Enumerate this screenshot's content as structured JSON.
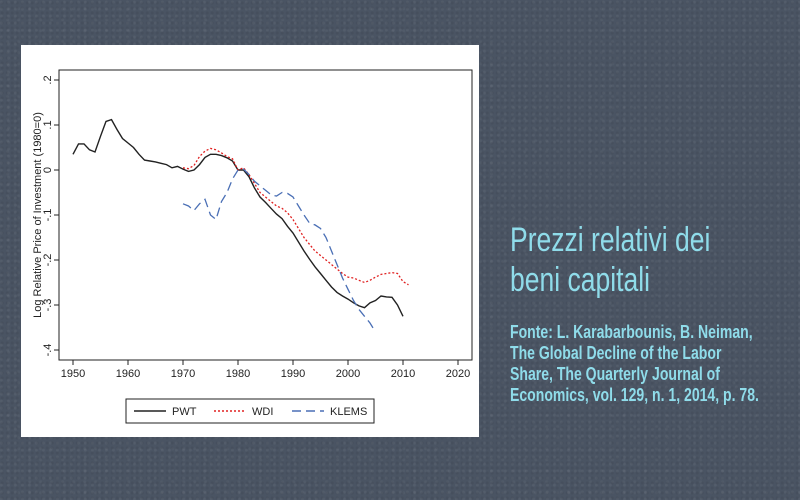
{
  "chart_data": {
    "type": "line",
    "ylabel": "Log Relative Price of Investment (1980=0)",
    "xlabel": "",
    "xlim": [
      1950,
      2020
    ],
    "ylim": [
      -0.4,
      0.2
    ],
    "x_ticks": [
      1950,
      1960,
      1970,
      1980,
      1990,
      2000,
      2010,
      2020
    ],
    "y_ticks": [
      -0.4,
      -0.3,
      -0.2,
      -0.1,
      0,
      0.1,
      0.2
    ],
    "y_tick_labels": [
      "-.4",
      "-.3",
      "-.2",
      "-.1",
      "0",
      ".1",
      ".2"
    ],
    "grid": false,
    "legend_position": "bottom",
    "series": [
      {
        "name": "PWT",
        "color": "#222222",
        "dash": "solid",
        "points": [
          [
            1950,
            0.035
          ],
          [
            1951,
            0.058
          ],
          [
            1952,
            0.058
          ],
          [
            1953,
            0.045
          ],
          [
            1954,
            0.04
          ],
          [
            1955,
            0.075
          ],
          [
            1956,
            0.108
          ],
          [
            1957,
            0.112
          ],
          [
            1958,
            0.09
          ],
          [
            1959,
            0.07
          ],
          [
            1960,
            0.06
          ],
          [
            1961,
            0.05
          ],
          [
            1962,
            0.035
          ],
          [
            1963,
            0.022
          ],
          [
            1964,
            0.02
          ],
          [
            1965,
            0.018
          ],
          [
            1966,
            0.015
          ],
          [
            1967,
            0.012
          ],
          [
            1968,
            0.005
          ],
          [
            1969,
            0.008
          ],
          [
            1970,
            0.002
          ],
          [
            1971,
            -0.003
          ],
          [
            1972,
            0.0
          ],
          [
            1973,
            0.012
          ],
          [
            1974,
            0.028
          ],
          [
            1975,
            0.035
          ],
          [
            1976,
            0.035
          ],
          [
            1977,
            0.032
          ],
          [
            1978,
            0.027
          ],
          [
            1979,
            0.02
          ],
          [
            1980,
            0.0
          ],
          [
            1981,
            0.0
          ],
          [
            1982,
            -0.015
          ],
          [
            1983,
            -0.04
          ],
          [
            1984,
            -0.06
          ],
          [
            1985,
            -0.072
          ],
          [
            1986,
            -0.085
          ],
          [
            1987,
            -0.098
          ],
          [
            1988,
            -0.108
          ],
          [
            1989,
            -0.125
          ],
          [
            1990,
            -0.14
          ],
          [
            1991,
            -0.16
          ],
          [
            1992,
            -0.18
          ],
          [
            1993,
            -0.198
          ],
          [
            1994,
            -0.215
          ],
          [
            1995,
            -0.23
          ],
          [
            1996,
            -0.245
          ],
          [
            1997,
            -0.26
          ],
          [
            1998,
            -0.272
          ],
          [
            1999,
            -0.28
          ],
          [
            2000,
            -0.287
          ],
          [
            2001,
            -0.295
          ],
          [
            2002,
            -0.302
          ],
          [
            2003,
            -0.306
          ],
          [
            2004,
            -0.295
          ],
          [
            2005,
            -0.29
          ],
          [
            2006,
            -0.28
          ],
          [
            2007,
            -0.282
          ],
          [
            2008,
            -0.283
          ],
          [
            2009,
            -0.3
          ],
          [
            2010,
            -0.325
          ]
        ]
      },
      {
        "name": "WDI",
        "color": "#e02020",
        "dash": "dotted",
        "points": [
          [
            1970,
            0.005
          ],
          [
            1971,
            0.003
          ],
          [
            1972,
            0.01
          ],
          [
            1973,
            0.03
          ],
          [
            1974,
            0.042
          ],
          [
            1975,
            0.048
          ],
          [
            1976,
            0.045
          ],
          [
            1977,
            0.038
          ],
          [
            1978,
            0.03
          ],
          [
            1979,
            0.025
          ],
          [
            1980,
            0.0
          ],
          [
            1981,
            0.005
          ],
          [
            1982,
            -0.01
          ],
          [
            1983,
            -0.03
          ],
          [
            1984,
            -0.05
          ],
          [
            1985,
            -0.06
          ],
          [
            1986,
            -0.07
          ],
          [
            1987,
            -0.08
          ],
          [
            1988,
            -0.085
          ],
          [
            1989,
            -0.095
          ],
          [
            1990,
            -0.11
          ],
          [
            1991,
            -0.13
          ],
          [
            1992,
            -0.15
          ],
          [
            1993,
            -0.165
          ],
          [
            1994,
            -0.18
          ],
          [
            1995,
            -0.19
          ],
          [
            1996,
            -0.2
          ],
          [
            1997,
            -0.21
          ],
          [
            1998,
            -0.22
          ],
          [
            1999,
            -0.23
          ],
          [
            2000,
            -0.238
          ],
          [
            2001,
            -0.24
          ],
          [
            2002,
            -0.245
          ],
          [
            2003,
            -0.25
          ],
          [
            2004,
            -0.245
          ],
          [
            2005,
            -0.238
          ],
          [
            2006,
            -0.232
          ],
          [
            2007,
            -0.23
          ],
          [
            2008,
            -0.228
          ],
          [
            2009,
            -0.23
          ],
          [
            2010,
            -0.248
          ],
          [
            2011,
            -0.255
          ]
        ]
      },
      {
        "name": "KLEMS",
        "color": "#4a6fb5",
        "dash": "dashed",
        "points": [
          [
            1970,
            -0.075
          ],
          [
            1971,
            -0.08
          ],
          [
            1972,
            -0.09
          ],
          [
            1973,
            -0.075
          ],
          [
            1974,
            -0.065
          ],
          [
            1975,
            -0.1
          ],
          [
            1976,
            -0.11
          ],
          [
            1977,
            -0.07
          ],
          [
            1978,
            -0.05
          ],
          [
            1979,
            -0.02
          ],
          [
            1980,
            0.0
          ],
          [
            1981,
            0.002
          ],
          [
            1982,
            -0.01
          ],
          [
            1983,
            -0.025
          ],
          [
            1984,
            -0.035
          ],
          [
            1985,
            -0.045
          ],
          [
            1986,
            -0.055
          ],
          [
            1987,
            -0.058
          ],
          [
            1988,
            -0.05
          ],
          [
            1989,
            -0.052
          ],
          [
            1990,
            -0.06
          ],
          [
            1991,
            -0.08
          ],
          [
            1992,
            -0.1
          ],
          [
            1993,
            -0.118
          ],
          [
            1994,
            -0.122
          ],
          [
            1995,
            -0.13
          ],
          [
            1996,
            -0.15
          ],
          [
            1997,
            -0.18
          ],
          [
            1998,
            -0.21
          ],
          [
            1999,
            -0.24
          ],
          [
            2000,
            -0.265
          ],
          [
            2001,
            -0.29
          ],
          [
            2002,
            -0.31
          ],
          [
            2003,
            -0.325
          ],
          [
            2004,
            -0.34
          ],
          [
            2005,
            -0.36
          ]
        ]
      }
    ]
  },
  "caption": {
    "title_line1": "Prezzi relativi dei",
    "title_line2": "beni capitali",
    "source": "Fonte: L. Karabarbounis, B. Neiman, The Global Decline of the Labor Share, The Quarterly Journal of Economics, vol. 129, n. 1, 2014, p. 78."
  },
  "colors": {
    "background": "#4a5463",
    "caption_text": "#8fdcea"
  }
}
